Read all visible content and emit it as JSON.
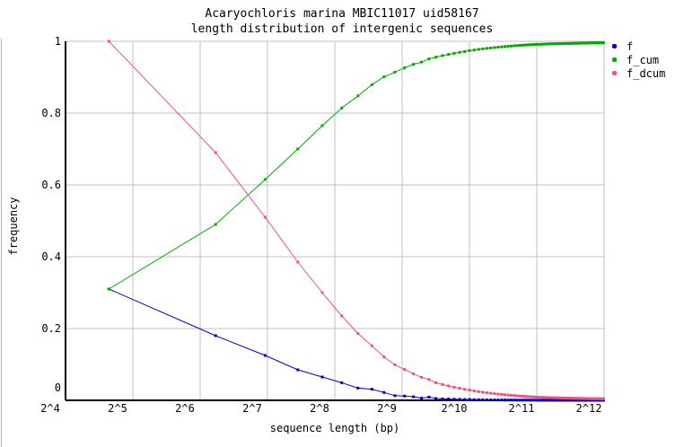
{
  "title": {
    "line1": "Acaryochloris marina MBIC11017 uid58167",
    "line2": "length distribution of intergenic sequences"
  },
  "axes": {
    "x_label": "sequence length (bp)",
    "y_label": "frequency",
    "x_ticks": [
      {
        "label": "2^4",
        "power": 4
      },
      {
        "label": "2^5",
        "power": 5
      },
      {
        "label": "2^6",
        "power": 6
      },
      {
        "label": "2^7",
        "power": 7
      },
      {
        "label": "2^8",
        "power": 8
      },
      {
        "label": "2^9",
        "power": 9
      },
      {
        "label": "2^10",
        "power": 10
      },
      {
        "label": "2^11",
        "power": 11
      },
      {
        "label": "2^12",
        "power": 12
      }
    ],
    "y_ticks": [
      {
        "label": "0",
        "value": 0
      },
      {
        "label": "0.2",
        "value": 0.2
      },
      {
        "label": "0.4",
        "value": 0.4
      },
      {
        "label": "0.6",
        "value": 0.6
      },
      {
        "label": "0.8",
        "value": 0.8
      },
      {
        "label": "1",
        "value": 1
      }
    ]
  },
  "colors": {
    "background": "#ffffff",
    "grid": "#c0c0c0",
    "axis": "#000000",
    "frame_edge": "#b2b2b2",
    "series_f": "#0000cd",
    "series_f_cum": "#00aa00",
    "series_f_dcum": "#f0507a"
  },
  "chart_data": {
    "type": "line",
    "title": "Acaryochloris marina MBIC11017 uid58167 — length distribution of intergenic sequences",
    "xlabel": "sequence length (bp)",
    "ylabel": "frequency",
    "x_scale": "log2",
    "xlim_bp": [
      16,
      4096
    ],
    "ylim": [
      0,
      1
    ],
    "grid": true,
    "legend_position": "top-right",
    "marker": "square",
    "bin_width_bp": 50,
    "x_bp": [
      25,
      75,
      125,
      175,
      225,
      275,
      325,
      375,
      425,
      475,
      525,
      575,
      625,
      675,
      725,
      775,
      825,
      875,
      925,
      975,
      1025,
      1075,
      1125,
      1175,
      1225,
      1275,
      1325,
      1375,
      1425,
      1475,
      1525,
      1575,
      1625,
      1675,
      1725,
      1775,
      1825,
      1875,
      1925,
      1975,
      2025,
      2075,
      2125,
      2175,
      2225,
      2275,
      2325,
      2375,
      2425,
      2475,
      2525,
      2575,
      2625,
      2675,
      2725,
      2775,
      2825,
      2875,
      2925,
      2975,
      3025,
      3075,
      3125,
      3175,
      3225,
      3275,
      3325,
      3375,
      3425,
      3475,
      3525,
      3575,
      3625,
      3675,
      3725,
      3775,
      3825,
      3875,
      3925,
      3975,
      4025,
      4075
    ],
    "series": [
      {
        "name": "f",
        "color": "#0000cd",
        "values": [
          0.31,
          0.18,
          0.125,
          0.085,
          0.065,
          0.049,
          0.034,
          0.031,
          0.022,
          0.013,
          0.012,
          0.01,
          0.006,
          0.009,
          0.005,
          0.004,
          0.0035,
          0.003,
          0.0027,
          0.0023,
          0.0025,
          0.0018,
          0.0017,
          0.0014,
          0.0013,
          0.0012,
          0.0011,
          0.001,
          0.001,
          0.0008,
          0.0008,
          0.0007,
          0.0007,
          0.0006,
          0.0006,
          0.0005,
          0.0005,
          0.0004,
          0.0004,
          0.0004,
          0.0003,
          0.0003,
          0.0003,
          0.0003,
          0.0002,
          0.0002,
          0.0002,
          0.0002,
          0.0002,
          0.0002,
          0.0001,
          0.0001,
          0.0001,
          0.0001,
          0.0001,
          0.0001,
          0.0001,
          0.0001,
          0.0001,
          0.0001,
          0.0001,
          0.0001,
          0.0001,
          0.0001,
          0.0001,
          0.0001,
          0.0001,
          0.0001,
          0.0001,
          0.0001,
          5e-05,
          5e-05,
          5e-05,
          5e-05,
          5e-05,
          5e-05,
          5e-05,
          5e-05,
          5e-05,
          5e-05,
          5e-05,
          5e-05
        ]
      },
      {
        "name": "f_cum",
        "color": "#00aa00",
        "values": [
          0.31,
          0.49,
          0.615,
          0.7,
          0.765,
          0.814,
          0.848,
          0.879,
          0.901,
          0.914,
          0.926,
          0.936,
          0.942,
          0.951,
          0.956,
          0.96,
          0.9635,
          0.9665,
          0.9692,
          0.9715,
          0.974,
          0.9758,
          0.9775,
          0.9789,
          0.9802,
          0.9814,
          0.9825,
          0.9835,
          0.9845,
          0.9853,
          0.9861,
          0.9868,
          0.9875,
          0.9881,
          0.9887,
          0.9892,
          0.9897,
          0.9901,
          0.9905,
          0.9909,
          0.9912,
          0.9915,
          0.9918,
          0.9921,
          0.9923,
          0.9925,
          0.9927,
          0.9929,
          0.9931,
          0.9933,
          0.9934,
          0.9935,
          0.9936,
          0.9937,
          0.9938,
          0.9939,
          0.994,
          0.9941,
          0.9942,
          0.9943,
          0.9944,
          0.9945,
          0.9946,
          0.9947,
          0.9948,
          0.9949,
          0.995,
          0.9951,
          0.9952,
          0.9953,
          0.99535,
          0.9954,
          0.99545,
          0.9955,
          0.99555,
          0.9956,
          0.99565,
          0.9957,
          0.99575,
          0.9958,
          0.99585,
          0.9959
        ]
      },
      {
        "name": "f_dcum",
        "color": "#f0507a",
        "values": [
          1,
          0.69,
          0.51,
          0.385,
          0.3,
          0.235,
          0.186,
          0.152,
          0.121,
          0.099,
          0.086,
          0.074,
          0.064,
          0.058,
          0.049,
          0.044,
          0.04,
          0.0365,
          0.0335,
          0.0308,
          0.0285,
          0.026,
          0.0242,
          0.0225,
          0.0211,
          0.0198,
          0.0186,
          0.0175,
          0.0165,
          0.0155,
          0.0147,
          0.0139,
          0.0132,
          0.0125,
          0.0119,
          0.0113,
          0.0108,
          0.0103,
          0.0099,
          0.0095,
          0.0091,
          0.0088,
          0.0085,
          0.0082,
          0.0079,
          0.0077,
          0.0075,
          0.0073,
          0.0071,
          0.0069,
          0.0067,
          0.0066,
          0.0065,
          0.0064,
          0.0063,
          0.0062,
          0.0061,
          0.006,
          0.0059,
          0.0058,
          0.0057,
          0.0056,
          0.0055,
          0.0054,
          0.0053,
          0.0052,
          0.0051,
          0.005,
          0.0049,
          0.0048,
          0.0047,
          0.00465,
          0.0046,
          0.00455,
          0.0045,
          0.00445,
          0.0044,
          0.00435,
          0.0043,
          0.00425,
          0.0042,
          0.00415
        ]
      }
    ]
  }
}
